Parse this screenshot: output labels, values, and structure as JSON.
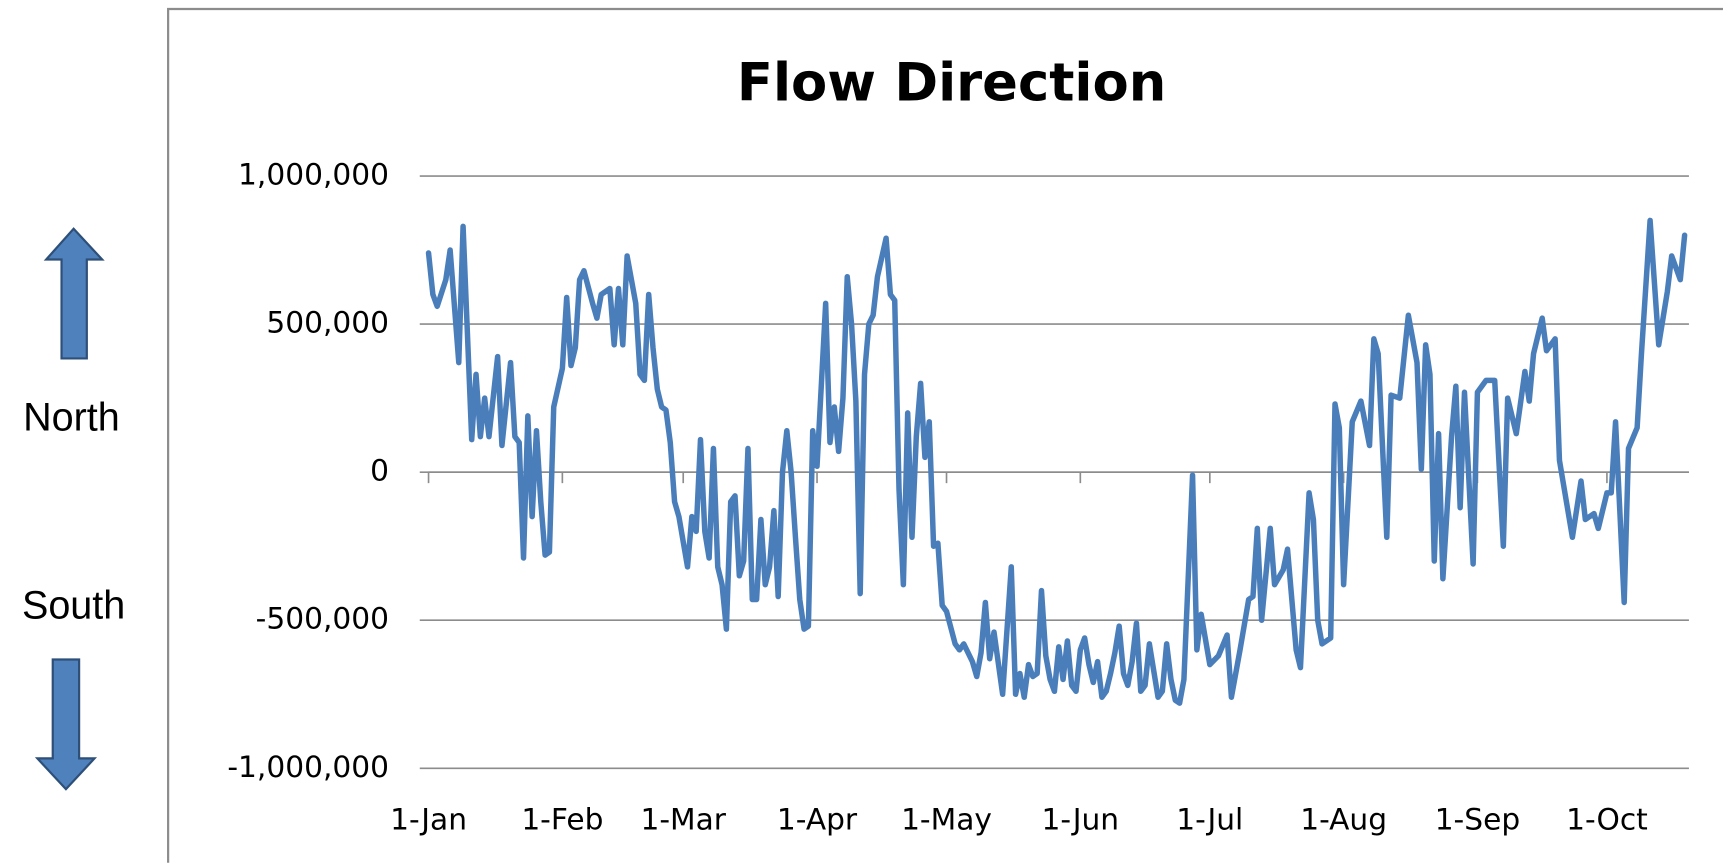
{
  "north_label": "North",
  "south_label": "South",
  "chart_data": {
    "type": "line",
    "title": "Flow Direction",
    "color": "#4a7ebb",
    "grid": true,
    "x": [
      0,
      1,
      2,
      4,
      5,
      7,
      8,
      10,
      11,
      12,
      13,
      14,
      16,
      17,
      19,
      20,
      21,
      22,
      23,
      24,
      25,
      26,
      27,
      28,
      29,
      31,
      32,
      33,
      34,
      35,
      36,
      38,
      39,
      40,
      42,
      43,
      44,
      45,
      46,
      48,
      49,
      50,
      51,
      52,
      53,
      54,
      55,
      56,
      57,
      58,
      60,
      61,
      62,
      63,
      64,
      65,
      66,
      67,
      68,
      69,
      70,
      71,
      72,
      73,
      74,
      75,
      76,
      77,
      78,
      79,
      80,
      81,
      82,
      83,
      84,
      85,
      86,
      87,
      88,
      89,
      90,
      92,
      93,
      94,
      95,
      96,
      97,
      98,
      99,
      100,
      101,
      102,
      103,
      104,
      106,
      107,
      108,
      109,
      110,
      111,
      112,
      113,
      114,
      115,
      116,
      117,
      118,
      119,
      120,
      122,
      123,
      124,
      125,
      126,
      127,
      128,
      129,
      130,
      131,
      133,
      135,
      136,
      137,
      138,
      139,
      140,
      141,
      142,
      143,
      144,
      145,
      146,
      147,
      148,
      149,
      150,
      151,
      152,
      153,
      154,
      155,
      156,
      157,
      158,
      159,
      160,
      161,
      162,
      163,
      164,
      165,
      166,
      167,
      168,
      169,
      170,
      171,
      172,
      173,
      174,
      175,
      177,
      178,
      179,
      181,
      183,
      185,
      186,
      188,
      190,
      191,
      192,
      193,
      195,
      196,
      198,
      199,
      201,
      202,
      204,
      205,
      206,
      207,
      209,
      210,
      211,
      212,
      214,
      216,
      218,
      219,
      220,
      222,
      223,
      225,
      227,
      229,
      230,
      231,
      232,
      233,
      234,
      235,
      237,
      238,
      239,
      240,
      242,
      243,
      245,
      247,
      249,
      250,
      252,
      254,
      255,
      256,
      258,
      259,
      261,
      262,
      265,
      267,
      268,
      270,
      271,
      273,
      274,
      275,
      277,
      278,
      280,
      281,
      283,
      285,
      287,
      288,
      290,
      291
    ],
    "values": [
      740000,
      600000,
      560000,
      650000,
      750000,
      370000,
      830000,
      110000,
      330000,
      120000,
      250000,
      120000,
      390000,
      90000,
      370000,
      120000,
      100000,
      -290000,
      190000,
      -150000,
      140000,
      -100000,
      -280000,
      -270000,
      220000,
      350000,
      590000,
      360000,
      420000,
      650000,
      680000,
      570000,
      520000,
      600000,
      620000,
      430000,
      620000,
      430000,
      730000,
      570000,
      330000,
      310000,
      600000,
      420000,
      280000,
      220000,
      210000,
      100000,
      -100000,
      -150000,
      -320000,
      -150000,
      -200000,
      110000,
      -200000,
      -290000,
      80000,
      -320000,
      -380000,
      -530000,
      -100000,
      -80000,
      -350000,
      -300000,
      80000,
      -430000,
      -430000,
      -160000,
      -380000,
      -320000,
      -130000,
      -420000,
      0,
      140000,
      0,
      -220000,
      -430000,
      -530000,
      -520000,
      140000,
      20000,
      570000,
      100000,
      220000,
      70000,
      250000,
      660000,
      500000,
      240000,
      -410000,
      330000,
      500000,
      530000,
      660000,
      790000,
      600000,
      580000,
      -60000,
      -380000,
      200000,
      -220000,
      120000,
      300000,
      50000,
      170000,
      -250000,
      -240000,
      -450000,
      -470000,
      -580000,
      -600000,
      -580000,
      -610000,
      -640000,
      -690000,
      -610000,
      -440000,
      -630000,
      -540000,
      -750000,
      -320000,
      -750000,
      -680000,
      -760000,
      -650000,
      -690000,
      -680000,
      -400000,
      -620000,
      -700000,
      -740000,
      -590000,
      -700000,
      -570000,
      -720000,
      -740000,
      -600000,
      -560000,
      -650000,
      -710000,
      -640000,
      -760000,
      -740000,
      -680000,
      -610000,
      -520000,
      -680000,
      -720000,
      -640000,
      -510000,
      -740000,
      -720000,
      -580000,
      -670000,
      -760000,
      -740000,
      -580000,
      -700000,
      -770000,
      -780000,
      -700000,
      -10000,
      -600000,
      -480000,
      -650000,
      -620000,
      -550000,
      -760000,
      -600000,
      -430000,
      -420000,
      -190000,
      -500000,
      -190000,
      -380000,
      -330000,
      -260000,
      -600000,
      -660000,
      -70000,
      -160000,
      -500000,
      -580000,
      -560000,
      230000,
      150000,
      -380000,
      170000,
      240000,
      90000,
      450000,
      400000,
      -220000,
      260000,
      250000,
      530000,
      370000,
      10000,
      430000,
      330000,
      -300000,
      130000,
      -360000,
      120000,
      290000,
      -120000,
      270000,
      -310000,
      270000,
      310000,
      310000,
      -250000,
      250000,
      130000,
      340000,
      240000,
      400000,
      520000,
      410000,
      450000,
      40000,
      -220000,
      -30000,
      -160000,
      -140000,
      -190000,
      -70000,
      -70000,
      170000,
      -440000,
      80000,
      150000,
      400000,
      850000,
      430000,
      610000,
      730000,
      650000,
      800000
    ],
    "xlim": [
      0,
      292
    ],
    "xticks": [
      {
        "value": 0,
        "label": "1-Jan"
      },
      {
        "value": 31,
        "label": "1-Feb"
      },
      {
        "value": 59,
        "label": "1-Mar"
      },
      {
        "value": 90,
        "label": "1-Apr"
      },
      {
        "value": 120,
        "label": "1-May"
      },
      {
        "value": 151,
        "label": "1-Jun"
      },
      {
        "value": 181,
        "label": "1-Jul"
      },
      {
        "value": 212,
        "label": "1-Aug"
      },
      {
        "value": 243,
        "label": "1-Sep"
      },
      {
        "value": 273,
        "label": "1-Oct"
      }
    ],
    "ylim": [
      -1000000,
      1000000
    ],
    "yticks": [
      {
        "value": -1000000,
        "label": "-1,000,000"
      },
      {
        "value": -500000,
        "label": "-500,000"
      },
      0,
      {
        "value": 500000,
        "label": "500,000"
      },
      {
        "value": 1000000,
        "label": "1,000,000"
      }
    ]
  }
}
